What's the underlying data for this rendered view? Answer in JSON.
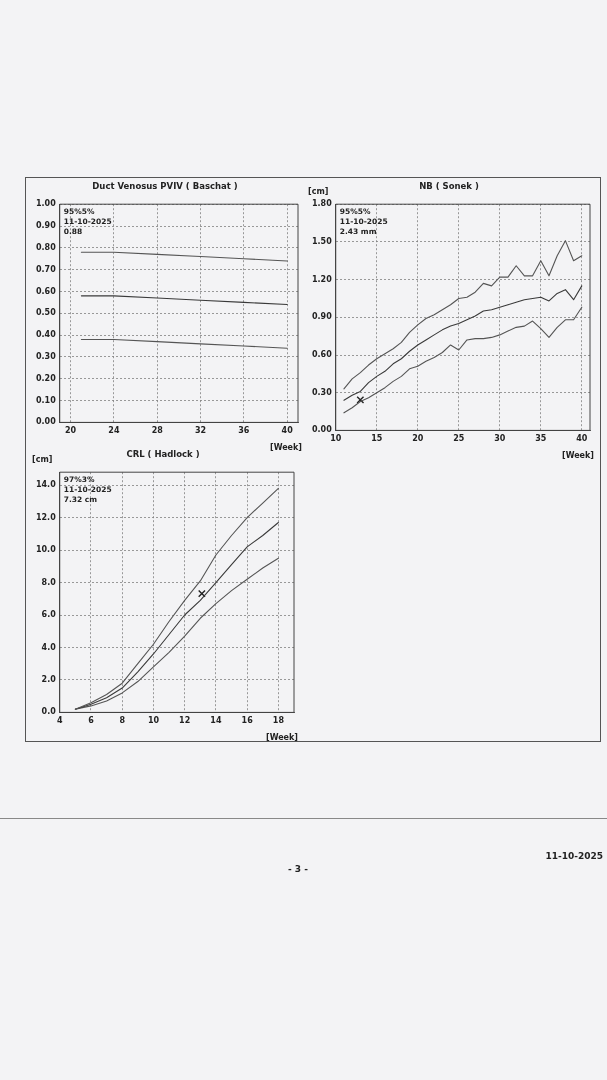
{
  "chart_data": [
    {
      "type": "line",
      "title": "Duct Venosus PVIV ( Baschat )",
      "xlabel": "[Week]",
      "annotations": [
        "95%5%",
        "11-10-2025",
        "0.88"
      ],
      "x": [
        21,
        24,
        28,
        32,
        36,
        40
      ],
      "series": [
        {
          "color": "#555555",
          "values": [
            0.78,
            0.78,
            0.77,
            0.76,
            0.75,
            0.74
          ]
        },
        {
          "color": "#3a3a3a",
          "values": [
            0.58,
            0.58,
            0.57,
            0.56,
            0.55,
            0.54
          ]
        },
        {
          "color": "#555555",
          "values": [
            0.38,
            0.38,
            0.37,
            0.36,
            0.35,
            0.34
          ]
        }
      ],
      "xlim": [
        19,
        41
      ],
      "ylim": [
        0,
        1
      ],
      "xticks": [
        20,
        24,
        28,
        32,
        36,
        40
      ],
      "yticks": [
        {
          "value": 0,
          "label": "0.00"
        },
        {
          "value": 0.1,
          "label": "0.10"
        },
        {
          "value": 0.2,
          "label": "0.20"
        },
        {
          "value": 0.3,
          "label": "0.30"
        },
        {
          "value": 0.4,
          "label": "0.40"
        },
        {
          "value": 0.5,
          "label": "0.50"
        },
        {
          "value": 0.6,
          "label": "0.60"
        },
        {
          "value": 0.7,
          "label": "0.70"
        },
        {
          "value": 0.8,
          "label": "0.80"
        },
        {
          "value": 0.9,
          "label": "0.90"
        },
        {
          "value": 1,
          "label": "1.00"
        }
      ],
      "grid": true
    },
    {
      "type": "line",
      "title": "NB ( Sonek )",
      "xlabel": "[Week]",
      "ylabel": "[cm]",
      "annotations": [
        "95%5%",
        "11-10-2025",
        "2.43 mm"
      ],
      "x": [
        11,
        12,
        13,
        14,
        15,
        16,
        17,
        18,
        19,
        20,
        21,
        22,
        23,
        24,
        25,
        26,
        27,
        28,
        29,
        30,
        31,
        32,
        33,
        34,
        35,
        36,
        37,
        38,
        39,
        40
      ],
      "series": [
        {
          "color": "#555555",
          "values": [
            0.33,
            0.41,
            0.46,
            0.52,
            0.57,
            0.61,
            0.65,
            0.7,
            0.78,
            0.84,
            0.89,
            0.92,
            0.96,
            1.0,
            1.05,
            1.06,
            1.1,
            1.17,
            1.15,
            1.22,
            1.22,
            1.31,
            1.23,
            1.23,
            1.35,
            1.23,
            1.39,
            1.51,
            1.35,
            1.39
          ]
        },
        {
          "color": "#3a3a3a",
          "values": [
            0.24,
            0.28,
            0.31,
            0.38,
            0.43,
            0.47,
            0.53,
            0.57,
            0.63,
            0.68,
            0.72,
            0.76,
            0.8,
            0.83,
            0.85,
            0.88,
            0.91,
            0.95,
            0.96,
            0.98,
            1.0,
            1.02,
            1.04,
            1.05,
            1.06,
            1.03,
            1.09,
            1.12,
            1.04,
            1.15
          ]
        },
        {
          "color": "#555555",
          "values": [
            0.14,
            0.18,
            0.23,
            0.26,
            0.3,
            0.34,
            0.39,
            0.43,
            0.49,
            0.51,
            0.55,
            0.58,
            0.62,
            0.68,
            0.64,
            0.72,
            0.73,
            0.73,
            0.74,
            0.76,
            0.79,
            0.82,
            0.83,
            0.87,
            0.81,
            0.74,
            0.82,
            0.88,
            0.88,
            0.98
          ]
        },
        {
          "type": "scatter",
          "marker": "cross",
          "color": "#222222",
          "x": [
            13
          ],
          "values": [
            0.243
          ]
        }
      ],
      "xlim": [
        10,
        41
      ],
      "ylim": [
        0,
        1.8
      ],
      "xticks": [
        10,
        15,
        20,
        25,
        30,
        35,
        40
      ],
      "yticks": [
        {
          "value": 0,
          "label": "0.00"
        },
        {
          "value": 0.3,
          "label": "0.30"
        },
        {
          "value": 0.6,
          "label": "0.60"
        },
        {
          "value": 0.9,
          "label": "0.90"
        },
        {
          "value": 1.2,
          "label": "1.20"
        },
        {
          "value": 1.5,
          "label": "1.50"
        },
        {
          "value": 1.8,
          "label": "1.80"
        }
      ],
      "grid": true
    },
    {
      "type": "line",
      "title": "CRL ( Hadlock )",
      "xlabel": "[Week]",
      "ylabel": "[cm]",
      "annotations": [
        "97%3%",
        "11-10-2025",
        "7.32 cm",
        "- 3 -",
        "11-10-2025"
      ],
      "x": [
        5,
        6,
        7,
        8,
        9,
        10,
        11,
        12,
        13,
        14,
        15,
        16,
        17,
        18
      ],
      "series": [
        {
          "color": "#555555",
          "values": [
            0.2,
            0.6,
            1.1,
            1.8,
            3.0,
            4.2,
            5.6,
            6.9,
            8.1,
            9.7,
            10.9,
            12.0,
            12.9,
            13.8
          ]
        },
        {
          "color": "#3a3a3a",
          "values": [
            0.2,
            0.5,
            0.9,
            1.5,
            2.5,
            3.6,
            4.8,
            6.0,
            6.9,
            8.0,
            9.1,
            10.2,
            10.9,
            11.7
          ]
        },
        {
          "color": "#555555",
          "values": [
            0.2,
            0.4,
            0.7,
            1.2,
            1.9,
            2.8,
            3.7,
            4.7,
            5.8,
            6.7,
            7.5,
            8.2,
            8.9,
            9.5
          ]
        },
        {
          "type": "scatter",
          "marker": "cross",
          "color": "#222222",
          "x": [
            13.1
          ],
          "values": [
            7.32
          ]
        }
      ],
      "xlim": [
        4,
        19
      ],
      "ylim": [
        0,
        14.8
      ],
      "xticks": [
        4,
        6,
        8,
        10,
        12,
        14,
        16,
        18
      ],
      "yticks": [
        {
          "value": 0,
          "label": "0.0"
        },
        {
          "value": 2,
          "label": "2.0"
        },
        {
          "value": 4,
          "label": "4.0"
        },
        {
          "value": 6,
          "label": "6.0"
        },
        {
          "value": 8,
          "label": "8.0"
        },
        {
          "value": 10,
          "label": "10.0"
        },
        {
          "value": 12,
          "label": "12.0"
        },
        {
          "value": 14,
          "label": "14.0"
        }
      ],
      "grid": true
    }
  ]
}
